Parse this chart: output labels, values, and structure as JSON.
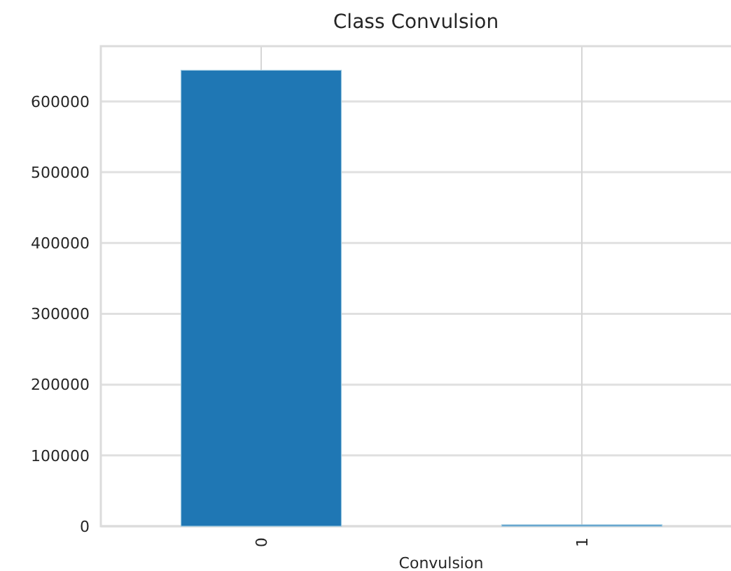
{
  "chart_data": {
    "type": "bar",
    "title": "Class Convulsion",
    "xlabel": "Convulsion",
    "categories": [
      "0",
      "1"
    ],
    "values": [
      644000,
      2000
    ],
    "color": "#1f77b4",
    "ylim": [
      0,
      678000
    ],
    "yticks": [
      0,
      100000,
      200000,
      300000,
      400000,
      500000,
      600000
    ],
    "grid": true
  }
}
